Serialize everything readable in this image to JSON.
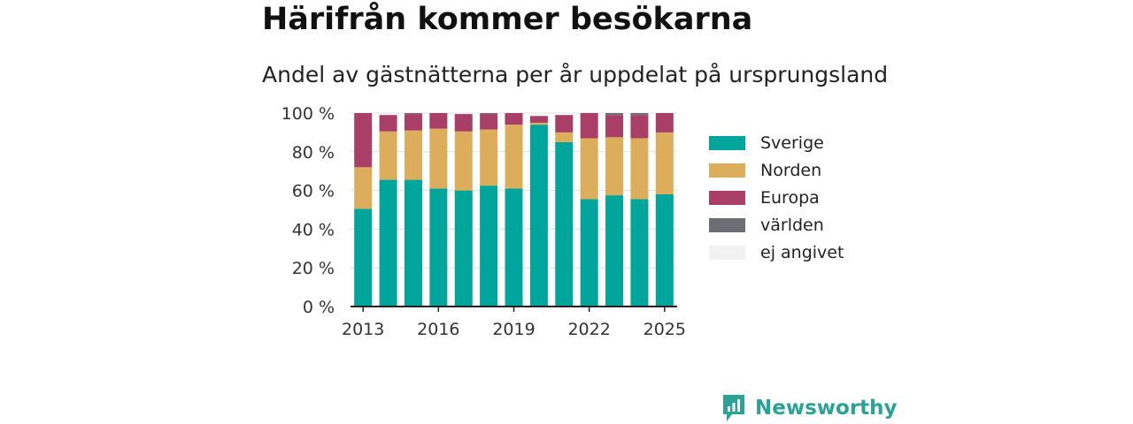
{
  "header": {
    "title": "Härifrån kommer besökarna",
    "subtitle": "Andel av gästnätterna per år uppdelat på ursprungsland"
  },
  "brand": {
    "label": "Newsworthy",
    "icon": "newsworthy-logo-icon",
    "color": "#2ba296"
  },
  "chart_data": {
    "type": "bar",
    "stacked": true,
    "x": [
      2013,
      2014,
      2015,
      2016,
      2017,
      2018,
      2019,
      2020,
      2021,
      2022,
      2023,
      2024,
      2025
    ],
    "x_ticks": [
      "2013",
      "2016",
      "2019",
      "2022",
      "2025"
    ],
    "y_ticks": [
      "0 %",
      "20 %",
      "40 %",
      "60 %",
      "80 %",
      "100 %"
    ],
    "ylim": [
      0,
      100
    ],
    "grid": true,
    "legend_position": "right",
    "series": [
      {
        "name": "Sverige",
        "color": "#00a59b",
        "values": [
          50.5,
          65.5,
          65.5,
          61,
          60,
          62.5,
          61,
          94,
          85,
          55.5,
          57.5,
          55.5,
          58
        ]
      },
      {
        "name": "Norden",
        "color": "#dcae5c",
        "values": [
          21.5,
          25,
          25.5,
          31,
          30.5,
          29,
          33,
          1,
          5,
          31.5,
          30,
          31.5,
          32
        ]
      },
      {
        "name": "Europa",
        "color": "#a93e66",
        "values": [
          28,
          8.5,
          8.5,
          8,
          9,
          8,
          6,
          3.5,
          9,
          13,
          11.5,
          12,
          10
        ]
      },
      {
        "name": "världen",
        "color": "#6d6d74",
        "values": [
          0,
          0,
          0.5,
          0,
          0,
          0.5,
          0,
          0,
          0,
          0,
          1,
          1,
          0
        ]
      },
      {
        "name": "ej angivet",
        "color": "#f2f2f2",
        "values": [
          0,
          0,
          0,
          0,
          0,
          0,
          0,
          0,
          0,
          0,
          0,
          0,
          0
        ]
      }
    ]
  }
}
